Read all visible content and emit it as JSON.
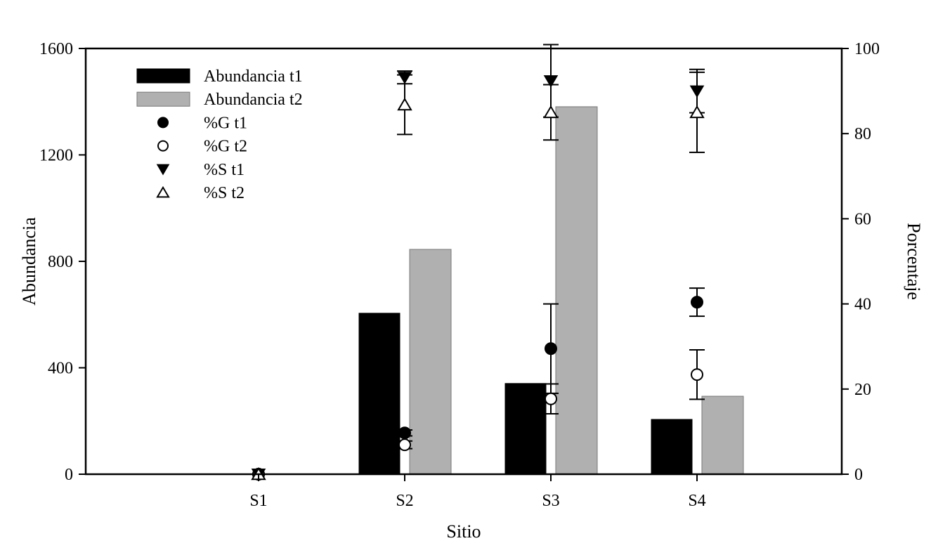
{
  "chart_data": {
    "type": "bar",
    "title": "",
    "xlabel": "Sitio",
    "ylabel": "Abundancia",
    "y2label": "Porcentaje",
    "categories": [
      "S1",
      "S2",
      "S3",
      "S4"
    ],
    "ylim": [
      0,
      1600
    ],
    "yticks": [
      "0",
      "400",
      "800",
      "1200",
      "1600"
    ],
    "y2lim": [
      0,
      100
    ],
    "y2ticks": [
      "0",
      "20",
      "40",
      "60",
      "80",
      "100"
    ],
    "grid": false,
    "legend_position": "top-left",
    "bar_series": [
      {
        "name": "Abundancia t1",
        "color": "#000000",
        "values": [
          0,
          605,
          341,
          206
        ]
      },
      {
        "name": "Abundancia t2",
        "color": "#b0b0b0",
        "values": [
          0,
          845,
          1381,
          293
        ]
      }
    ],
    "point_series": [
      {
        "name": "%G t1",
        "marker": "filled-circle",
        "axis": "right",
        "values": [
          0,
          9.7,
          29.5,
          40.4
        ],
        "errors": [
          0,
          0.7,
          10.5,
          3.3
        ]
      },
      {
        "name": "%G t2",
        "marker": "open-circle",
        "axis": "right",
        "values": [
          0,
          6.9,
          17.7,
          23.4
        ],
        "errors": [
          0,
          0.9,
          3.5,
          5.8
        ]
      },
      {
        "name": "%S t1",
        "marker": "filled-triangle-down",
        "axis": "right",
        "values": [
          0,
          93.2,
          92.4,
          90.0
        ],
        "errors": [
          0,
          1.5,
          8.5,
          5.1
        ]
      },
      {
        "name": "%S t2",
        "marker": "open-triangle-up",
        "axis": "right",
        "values": [
          0,
          86.8,
          85.0,
          85.0
        ],
        "errors": [
          0,
          7.0,
          6.5,
          9.4
        ]
      }
    ]
  }
}
